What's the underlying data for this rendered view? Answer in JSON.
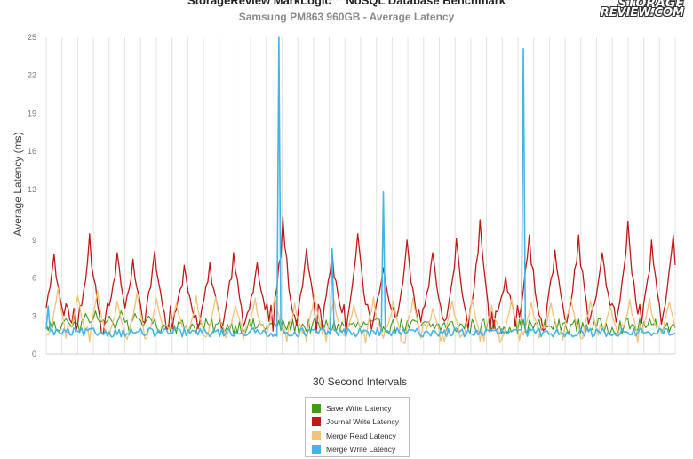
{
  "chart_data": {
    "type": "line",
    "title": "StorageReview MarkLogic™ NoSQL Database Benchmark",
    "subtitle": "Samsung PM863 960GB - Average Latency",
    "xlabel": "30 Second Intervals",
    "ylabel": "Average Latency (ms)",
    "ylim": [
      0,
      25
    ],
    "y_ticks": [
      "0",
      "3",
      "6",
      "9",
      "13",
      "16",
      "19",
      "22",
      "25"
    ],
    "grid": "vertical",
    "legend_position": "bottom",
    "x_count": 320,
    "series": [
      {
        "name": "Save Write Latency",
        "color": "#3f9a1e",
        "baseline": 2.2,
        "noise": 0.6,
        "peak_at": [
          10,
          20,
          25,
          32,
          38,
          45,
          52
        ],
        "peak_values": [
          2.8,
          3.2,
          3.4,
          3.0,
          3.4,
          3.2,
          3.0
        ],
        "peak_width": 2
      },
      {
        "name": "Journal Write Latency",
        "color": "#c0191a",
        "baseline": 2.8,
        "noise": 1.2,
        "peak_at": [
          4,
          22,
          36,
          44,
          55,
          70,
          83,
          95,
          107,
          120,
          132,
          145,
          158,
          171,
          183,
          196,
          208,
          220,
          233,
          245,
          258,
          270,
          282,
          295,
          307,
          318
        ],
        "peak_values": [
          7.9,
          9.5,
          8.0,
          7.5,
          8.1,
          7.0,
          7.2,
          8.0,
          7.2,
          10.8,
          8.3,
          8.1,
          9.5,
          6.8,
          9.0,
          8.0,
          9.1,
          10.6,
          6.1,
          9.4,
          8.2,
          9.4,
          8.0,
          10.5,
          9.0,
          9.4
        ],
        "peak_width": 4
      },
      {
        "name": "Merge Read Latency",
        "color": "#f0c27b",
        "baseline": 1.6,
        "noise": 0.8,
        "peak_at": [
          6,
          16,
          26,
          36,
          46,
          56,
          66,
          76,
          86,
          96,
          106,
          116,
          126,
          136,
          146,
          156,
          166,
          176,
          186,
          196,
          206,
          216,
          226,
          236,
          246,
          256,
          266,
          276,
          286,
          296,
          306,
          316
        ],
        "peak_values": [
          5.2,
          4.6,
          5.0,
          4.2,
          4.8,
          4.4,
          4.0,
          4.6,
          4.5,
          3.8,
          4.4,
          4.6,
          4.0,
          4.7,
          4.3,
          3.9,
          4.5,
          4.2,
          4.4,
          3.6,
          4.2,
          4.3,
          3.8,
          4.4,
          4.1,
          4.0,
          4.5,
          4.2,
          3.8,
          4.3,
          4.4,
          4.1
        ],
        "peak_width": 3
      },
      {
        "name": "Merge Write Latency",
        "color": "#45b4e7",
        "baseline": 1.7,
        "noise": 0.35,
        "spikes_at": [
          1,
          118,
          145,
          171,
          242
        ],
        "spike_values": [
          3.8,
          25,
          8.3,
          12.8,
          24.1
        ]
      }
    ]
  },
  "logo": {
    "line1": "STORAGE",
    "line2": "REVIEW.COM"
  }
}
